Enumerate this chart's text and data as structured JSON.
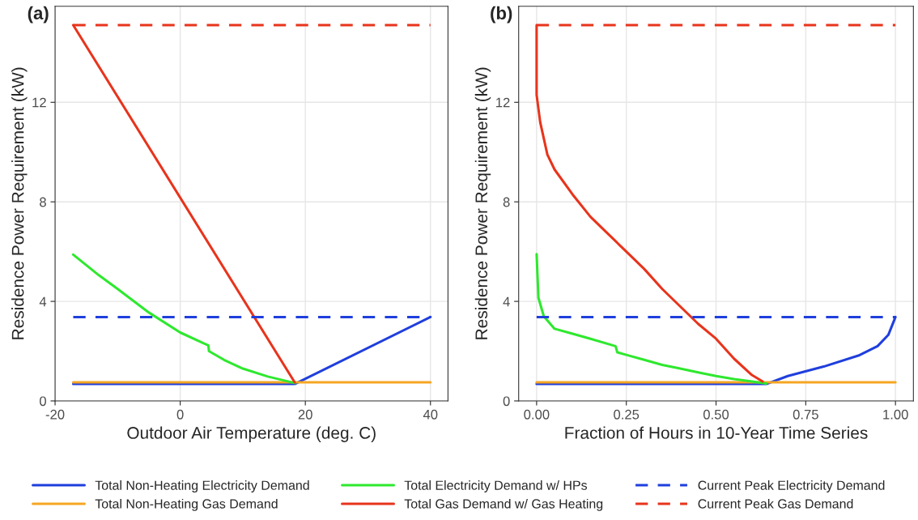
{
  "chart_data": [
    {
      "type": "line",
      "title": "(a)",
      "xlabel": "Outdoor Air Temperature (deg. C)",
      "ylabel": "Residence Power Requirement (kW)",
      "xlim": [
        -20,
        42.8
      ],
      "xticks": [
        -20,
        0,
        20,
        40
      ],
      "ylim": [
        0,
        15.86
      ],
      "yticks": [
        0,
        4,
        8,
        12
      ],
      "grid": true,
      "legend": "bottom",
      "series": [
        {
          "name": "Total Non-Heating Electricity Demand",
          "color": "#1f3fdd",
          "x": [
            -17.1,
            18.3,
            40
          ],
          "values": [
            0.68,
            0.68,
            3.37
          ]
        },
        {
          "name": "Total Non-Heating Gas Demand",
          "color": "#f5a623",
          "x": [
            -17.1,
            40
          ],
          "values": [
            0.75,
            0.75
          ]
        },
        {
          "name": "Total Electricity Demand w/ HPs",
          "color": "#2ee82e",
          "x": [
            -17.1,
            -13,
            -10,
            -5,
            0,
            4.5,
            4.6,
            7,
            10,
            14,
            18.3
          ],
          "values": [
            5.88,
            5.05,
            4.5,
            3.55,
            2.75,
            2.23,
            2.0,
            1.65,
            1.3,
            0.98,
            0.72
          ]
        },
        {
          "name": "Total Gas Demand w/ Gas Heating",
          "color": "#e8341c",
          "x": [
            -17.1,
            18.3
          ],
          "values": [
            15.1,
            0.75
          ]
        },
        {
          "name": "Current Peak Electricity Demand",
          "color": "#1f3fdd",
          "line_style": "dashed",
          "x": [
            -17.1,
            40
          ],
          "values": [
            3.37,
            3.37
          ]
        },
        {
          "name": "Current Peak Gas Demand",
          "color": "#e8341c",
          "line_style": "dashed",
          "x": [
            -17.1,
            40
          ],
          "values": [
            15.1,
            15.1
          ]
        }
      ]
    },
    {
      "type": "line",
      "title": "(b)",
      "xlabel": "Fraction of Hours in 10-Year Time Series",
      "ylabel": "Residence Power Requirement (kW)",
      "xlim": [
        -0.05,
        1.05
      ],
      "xticks": [
        {
          "value": 0,
          "label": "0.00"
        },
        {
          "value": 0.25,
          "label": "0.25"
        },
        {
          "value": 0.5,
          "label": "0.50"
        },
        {
          "value": 0.75,
          "label": "0.75"
        },
        {
          "value": 1,
          "label": "1.00"
        }
      ],
      "ylim": [
        0,
        15.86
      ],
      "yticks": [
        0,
        4,
        8,
        12
      ],
      "grid": true,
      "legend": "bottom",
      "series": [
        {
          "name": "Total Non-Heating Electricity Demand",
          "color": "#1f3fdd",
          "x": [
            0,
            0.64,
            0.7,
            0.8,
            0.9,
            0.95,
            0.98,
            1.0
          ],
          "values": [
            0.68,
            0.68,
            1.0,
            1.38,
            1.84,
            2.2,
            2.65,
            3.37
          ]
        },
        {
          "name": "Total Non-Heating Gas Demand",
          "color": "#f5a623",
          "x": [
            0,
            1
          ],
          "values": [
            0.75,
            0.75
          ]
        },
        {
          "name": "Total Electricity Demand w/ HPs",
          "color": "#2ee82e",
          "x": [
            0,
            0.005,
            0.02,
            0.05,
            0.1,
            0.15,
            0.22,
            0.225,
            0.25,
            0.3,
            0.35,
            0.4,
            0.45,
            0.5,
            0.55,
            0.6,
            0.64
          ],
          "values": [
            5.9,
            4.15,
            3.4,
            2.9,
            2.7,
            2.5,
            2.2,
            1.95,
            1.85,
            1.65,
            1.45,
            1.3,
            1.15,
            1.0,
            0.88,
            0.78,
            0.7
          ]
        },
        {
          "name": "Total Gas Demand w/ Gas Heating",
          "color": "#e8341c",
          "x": [
            0,
            0,
            0.01,
            0.03,
            0.05,
            0.1,
            0.15,
            0.2,
            0.25,
            0.3,
            0.35,
            0.4,
            0.45,
            0.5,
            0.55,
            0.6,
            0.63
          ],
          "values": [
            15.1,
            12.3,
            11.2,
            9.9,
            9.3,
            8.3,
            7.4,
            6.7,
            6.0,
            5.3,
            4.5,
            3.8,
            3.1,
            2.5,
            1.7,
            1.04,
            0.78
          ]
        },
        {
          "name": "Current Peak Electricity Demand",
          "color": "#1f3fdd",
          "line_style": "dashed",
          "x": [
            0,
            1
          ],
          "values": [
            3.37,
            3.37
          ]
        },
        {
          "name": "Current Peak Gas Demand",
          "color": "#e8341c",
          "line_style": "dashed",
          "x": [
            0,
            1
          ],
          "values": [
            15.1,
            15.1
          ]
        }
      ]
    }
  ]
}
